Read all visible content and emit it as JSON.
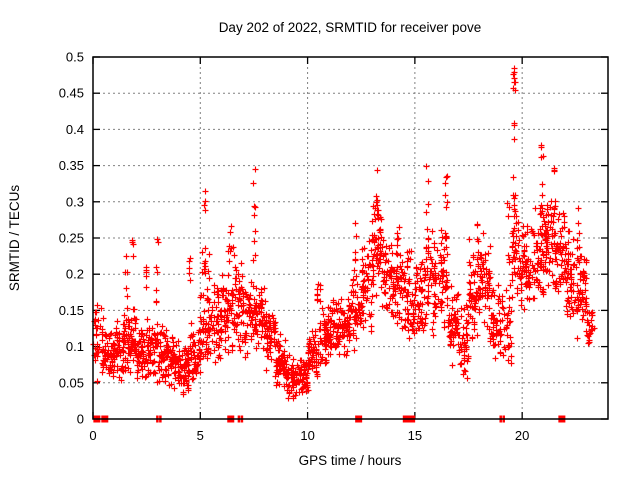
{
  "chart_data": {
    "type": "scatter",
    "title": "Day 202 of 2022, SRMTID for receiver pove",
    "xlabel": "GPS time / hours",
    "ylabel": "SRMTID / TECUs",
    "xlim": [
      0,
      24
    ],
    "ylim": [
      0,
      0.5
    ],
    "xticks": [
      0,
      5,
      10,
      15,
      20
    ],
    "yticks": [
      0,
      0.05,
      0.1,
      0.15,
      0.2,
      0.25,
      0.3,
      0.35,
      0.4,
      0.45,
      0.5
    ],
    "ytick_labels": [
      "0",
      "0.05",
      "0.1",
      "0.15",
      "0.2",
      "0.25",
      "0.3",
      "0.35",
      "0.4",
      "0.45",
      "0.5"
    ],
    "grid": true,
    "legend": "none",
    "marker": "plus",
    "marker_color": "#ff0000",
    "grid_color": "#808080",
    "border_color": "#000000",
    "background_color": "#ffffff",
    "note": "Dense scatter (~2000 pts). Individual points are synthesized deterministically from the density profile below, which was read directly off the plot.",
    "bands_format": [
      "x_start_h",
      "x_end_h",
      "y_min_TECU",
      "y_max_TECU",
      "count"
    ],
    "bands": [
      [
        0.0,
        0.5,
        0.05,
        0.17,
        40
      ],
      [
        0.5,
        1.0,
        0.05,
        0.13,
        55
      ],
      [
        1.0,
        1.5,
        0.05,
        0.15,
        55
      ],
      [
        1.5,
        2.0,
        0.06,
        0.16,
        55
      ],
      [
        2.0,
        2.5,
        0.05,
        0.13,
        50
      ],
      [
        2.5,
        3.0,
        0.05,
        0.15,
        50
      ],
      [
        3.0,
        3.5,
        0.04,
        0.13,
        50
      ],
      [
        3.5,
        4.0,
        0.04,
        0.12,
        50
      ],
      [
        4.0,
        4.5,
        0.03,
        0.11,
        55
      ],
      [
        4.5,
        5.0,
        0.05,
        0.13,
        50
      ],
      [
        5.0,
        5.5,
        0.06,
        0.19,
        45
      ],
      [
        5.5,
        6.0,
        0.07,
        0.2,
        50
      ],
      [
        6.0,
        6.5,
        0.08,
        0.23,
        50
      ],
      [
        6.5,
        7.0,
        0.08,
        0.25,
        50
      ],
      [
        7.0,
        7.5,
        0.08,
        0.2,
        45
      ],
      [
        7.5,
        8.0,
        0.09,
        0.2,
        50
      ],
      [
        8.0,
        8.5,
        0.06,
        0.17,
        50
      ],
      [
        8.5,
        9.0,
        0.04,
        0.12,
        55
      ],
      [
        9.0,
        9.5,
        0.025,
        0.09,
        55
      ],
      [
        9.5,
        10.0,
        0.03,
        0.09,
        50
      ],
      [
        10.0,
        10.5,
        0.05,
        0.13,
        50
      ],
      [
        10.5,
        11.0,
        0.07,
        0.16,
        50
      ],
      [
        11.0,
        11.5,
        0.08,
        0.17,
        50
      ],
      [
        11.5,
        12.0,
        0.08,
        0.17,
        50
      ],
      [
        12.0,
        12.5,
        0.09,
        0.21,
        45
      ],
      [
        12.5,
        13.0,
        0.12,
        0.26,
        50
      ],
      [
        13.0,
        13.5,
        0.15,
        0.31,
        55
      ],
      [
        13.5,
        14.0,
        0.13,
        0.26,
        50
      ],
      [
        14.0,
        14.5,
        0.12,
        0.25,
        45
      ],
      [
        14.5,
        15.0,
        0.1,
        0.24,
        50
      ],
      [
        15.0,
        15.5,
        0.1,
        0.24,
        50
      ],
      [
        15.5,
        16.0,
        0.11,
        0.27,
        50
      ],
      [
        16.0,
        16.5,
        0.12,
        0.28,
        50
      ],
      [
        16.5,
        17.0,
        0.07,
        0.19,
        50
      ],
      [
        17.0,
        17.5,
        0.05,
        0.17,
        45
      ],
      [
        17.5,
        18.0,
        0.1,
        0.25,
        50
      ],
      [
        18.0,
        18.5,
        0.12,
        0.26,
        50
      ],
      [
        18.5,
        19.0,
        0.08,
        0.2,
        45
      ],
      [
        19.0,
        19.5,
        0.06,
        0.2,
        35
      ],
      [
        19.5,
        20.0,
        0.15,
        0.3,
        45
      ],
      [
        20.0,
        20.5,
        0.14,
        0.28,
        50
      ],
      [
        20.5,
        21.0,
        0.15,
        0.3,
        50
      ],
      [
        21.0,
        21.5,
        0.18,
        0.31,
        50
      ],
      [
        21.5,
        22.0,
        0.16,
        0.3,
        50
      ],
      [
        22.0,
        22.5,
        0.13,
        0.28,
        50
      ],
      [
        22.5,
        23.0,
        0.1,
        0.26,
        50
      ],
      [
        23.0,
        23.35,
        0.09,
        0.16,
        25
      ]
    ],
    "spike_columns_format": [
      "x_center_h",
      "x_spread_h",
      "y_min_TECU",
      "y_max_TECU",
      "count"
    ],
    "spike_columns": [
      [
        1.55,
        0.1,
        0.15,
        0.225,
        6
      ],
      [
        1.85,
        0.1,
        0.15,
        0.25,
        5
      ],
      [
        2.45,
        0.1,
        0.14,
        0.22,
        5
      ],
      [
        2.95,
        0.12,
        0.15,
        0.255,
        7
      ],
      [
        4.5,
        0.1,
        0.13,
        0.24,
        6
      ],
      [
        5.15,
        0.2,
        0.19,
        0.315,
        13
      ],
      [
        5.35,
        0.1,
        0.15,
        0.28,
        6
      ],
      [
        6.35,
        0.15,
        0.2,
        0.27,
        7
      ],
      [
        7.5,
        0.12,
        0.21,
        0.35,
        9
      ],
      [
        10.5,
        0.15,
        0.13,
        0.21,
        9
      ],
      [
        12.2,
        0.15,
        0.2,
        0.29,
        6
      ],
      [
        13.25,
        0.15,
        0.2,
        0.346,
        12
      ],
      [
        14.2,
        0.1,
        0.22,
        0.27,
        5
      ],
      [
        15.55,
        0.12,
        0.22,
        0.35,
        9
      ],
      [
        16.45,
        0.12,
        0.22,
        0.365,
        10
      ],
      [
        17.9,
        0.1,
        0.2,
        0.27,
        6
      ],
      [
        19.35,
        0.1,
        0.2,
        0.3,
        6
      ],
      [
        19.62,
        0.1,
        0.2,
        0.43,
        14
      ],
      [
        19.63,
        0.12,
        0.44,
        0.493,
        9
      ],
      [
        20.9,
        0.1,
        0.28,
        0.4,
        9
      ],
      [
        21.5,
        0.12,
        0.28,
        0.35,
        7
      ],
      [
        22.6,
        0.1,
        0.2,
        0.3,
        7
      ]
    ],
    "zero_value_markers_format": [
      "x_center_h",
      "kind(square|thin)"
    ],
    "zero_value_markers": [
      [
        0.18,
        "square"
      ],
      [
        0.55,
        "square"
      ],
      [
        3.0,
        "thin"
      ],
      [
        3.14,
        "thin"
      ],
      [
        6.42,
        "square"
      ],
      [
        6.8,
        "thin"
      ],
      [
        6.94,
        "thin"
      ],
      [
        12.38,
        "square"
      ],
      [
        14.6,
        "square"
      ],
      [
        14.85,
        "square"
      ],
      [
        19.0,
        "thin"
      ],
      [
        19.14,
        "thin"
      ],
      [
        21.85,
        "square"
      ]
    ]
  }
}
